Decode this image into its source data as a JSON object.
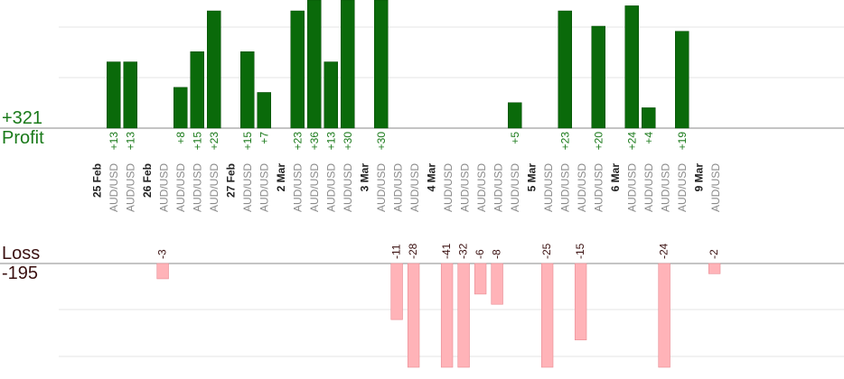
{
  "summary": {
    "profit_total": "+321",
    "profit_label": "Profit",
    "loss_label": "Loss",
    "loss_total": "-195"
  },
  "colors": {
    "profit_bar": "#0a6a0a",
    "loss_bar": "#ffb3b8",
    "profit_text": "#1a7a1a",
    "loss_text": "#3a1010",
    "gridline": "#e6e6e6",
    "axis": "#888888"
  },
  "chart_data": {
    "type": "bar",
    "title": "",
    "categories": [
      "25 Feb",
      "AUD/USD",
      "AUD/USD",
      "26 Feb",
      "AUD/USD",
      "AUD/USD",
      "AUD/USD",
      "AUD/USD",
      "27 Feb",
      "AUD/USD",
      "AUD/USD",
      "2 Mar",
      "AUD/USD",
      "AUD/USD",
      "AUD/USD",
      "AUD/USD",
      "3 Mar",
      "AUD/USD",
      "AUD/USD",
      "AUD/USD",
      "4 Mar",
      "AUD/USD",
      "AUD/USD",
      "AUD/USD",
      "AUD/USD",
      "AUD/USD",
      "5 Mar",
      "AUD/USD",
      "AUD/USD",
      "AUD/USD",
      "AUD/USD",
      "6 Mar",
      "AUD/USD",
      "AUD/USD",
      "AUD/USD",
      "AUD/USD",
      "9 Mar",
      "AUD/USD"
    ],
    "date_columns": [
      0,
      3,
      8,
      11,
      16,
      20,
      26,
      31,
      36
    ],
    "profit_values": [
      null,
      13,
      13,
      null,
      -3,
      8,
      15,
      23,
      null,
      15,
      7,
      null,
      23,
      36,
      13,
      30,
      null,
      30,
      -11,
      -28,
      null,
      -41,
      -32,
      -6,
      -8,
      5,
      null,
      -25,
      23,
      -15,
      20,
      null,
      24,
      4,
      -24,
      19,
      null,
      -2
    ],
    "profit_labels": [
      null,
      "+13",
      "+13",
      null,
      "-3",
      "+8",
      "+15",
      "+23",
      null,
      "+15",
      "+7",
      null,
      "+23",
      "+36",
      "+13",
      "+30",
      null,
      "+30",
      "-11",
      "-28",
      null,
      "-41",
      "-32",
      "-6",
      "-8",
      "+5",
      null,
      "-25",
      "+23",
      "-15",
      "+20",
      null,
      "+24",
      "+4",
      "-24",
      "+19",
      null,
      "-2"
    ],
    "profit_ylim": [
      0,
      25
    ],
    "loss_ylim": [
      0,
      20
    ]
  }
}
